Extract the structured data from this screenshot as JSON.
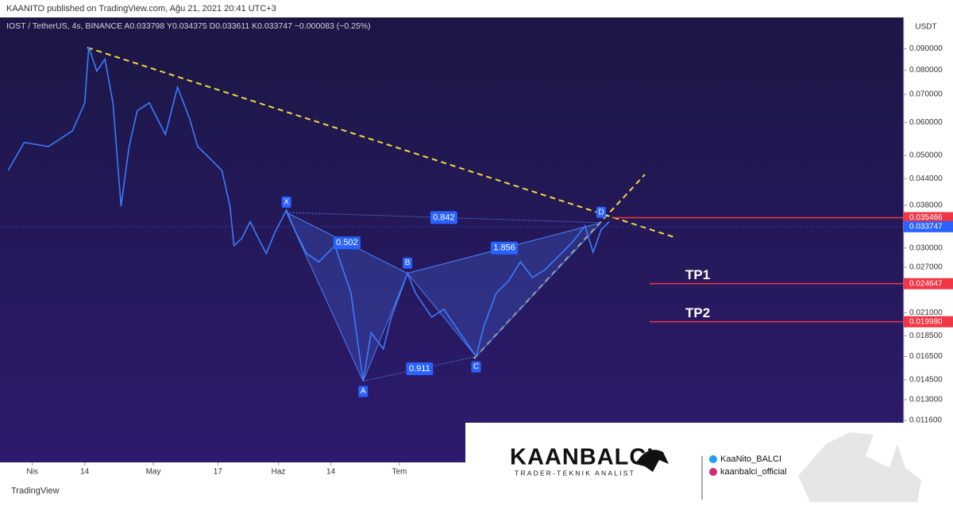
{
  "header": {
    "published": "KAANITO published on TradingView.com, Ağu 21, 2021 20:41 UTC+3"
  },
  "chart_data": {
    "type": "line",
    "legend_text": "IOST / TetherUS, 4s, BINANCE  A0.033798  Y0.034375  D0.033611  K0.033747  −0.000083 (−0.25%)",
    "currency": "USDT",
    "log_scale": true,
    "color": "#3d7bff",
    "xlim": [
      83,
      307
    ],
    "xticks": [
      {
        "value": 91,
        "label": "Nis"
      },
      {
        "value": 104,
        "label": "14"
      },
      {
        "value": 121,
        "label": "May"
      },
      {
        "value": 137,
        "label": "17"
      },
      {
        "value": 152,
        "label": "Haz"
      },
      {
        "value": 165,
        "label": "14"
      },
      {
        "value": 182,
        "label": "Tem"
      }
    ],
    "ylim": [
      0.0092,
      0.107
    ],
    "yticks": [
      {
        "value": 0.09,
        "label": "0.090000"
      },
      {
        "value": 0.08,
        "label": "0.080000"
      },
      {
        "value": 0.07,
        "label": "0.070000"
      },
      {
        "value": 0.06,
        "label": "0.060000"
      },
      {
        "value": 0.05,
        "label": "0.050000"
      },
      {
        "value": 0.044,
        "label": "0.044000"
      },
      {
        "value": 0.038,
        "label": "0.038000"
      },
      {
        "value": 0.03,
        "label": "0.030000"
      },
      {
        "value": 0.027,
        "label": "0.027000"
      },
      {
        "value": 0.021,
        "label": "0.021000"
      },
      {
        "value": 0.0185,
        "label": "0.018500"
      },
      {
        "value": 0.0165,
        "label": "0.016500"
      },
      {
        "value": 0.0145,
        "label": "0.014500"
      },
      {
        "value": 0.013,
        "label": "0.013000"
      },
      {
        "value": 0.0116,
        "label": "0.011600"
      }
    ],
    "x": [
      85,
      89,
      95,
      101,
      104,
      105,
      107,
      109,
      111,
      113,
      115,
      117,
      120,
      124,
      127,
      130,
      132,
      135,
      138,
      140,
      141,
      143,
      145,
      147,
      149,
      151,
      154,
      156,
      159,
      162,
      166,
      170,
      173,
      175,
      178,
      180,
      184,
      186,
      190,
      193,
      197,
      201,
      203,
      206,
      209,
      212,
      215,
      218,
      221,
      225,
      228,
      230,
      232,
      234
    ],
    "values": [
      0.046,
      0.0537,
      0.0525,
      0.0573,
      0.0668,
      0.0908,
      0.0796,
      0.085,
      0.0668,
      0.0378,
      0.0525,
      0.0639,
      0.0668,
      0.0561,
      0.0729,
      0.0612,
      0.0525,
      0.0492,
      0.046,
      0.0378,
      0.0304,
      0.0317,
      0.0347,
      0.0317,
      0.0291,
      0.0325,
      0.037,
      0.0332,
      0.0291,
      0.0278,
      0.0304,
      0.0234,
      0.0144,
      0.0188,
      0.0172,
      0.0205,
      0.0261,
      0.0234,
      0.0205,
      0.0214,
      0.0188,
      0.0165,
      0.0196,
      0.0234,
      0.025,
      0.0278,
      0.0255,
      0.0266,
      0.0284,
      0.0311,
      0.0339,
      0.0293,
      0.0332,
      0.0347
    ],
    "price_lines": [
      {
        "value": 0.035466,
        "label": "0.035466",
        "color": "#f23645"
      },
      {
        "value": 0.033747,
        "label": "0.033747",
        "color": "#2962ff"
      },
      {
        "value": 0.024647,
        "label": "0.024647",
        "color": "#f23645",
        "name": "TP1"
      },
      {
        "value": 0.01998,
        "label": "0.019980",
        "color": "#f23645",
        "name": "TP2"
      }
    ],
    "pattern": {
      "points": [
        {
          "label": "X",
          "x": 154,
          "y": 0.0365
        },
        {
          "label": "A",
          "x": 173,
          "y": 0.0144
        },
        {
          "label": "B",
          "x": 184,
          "y": 0.0261
        },
        {
          "label": "C",
          "x": 201,
          "y": 0.0165
        },
        {
          "label": "D",
          "x": 232,
          "y": 0.0345
        }
      ],
      "ratios": [
        0.502,
        0.842,
        1.856,
        0.911
      ]
    }
  },
  "footer": {
    "brand": "TradingView"
  },
  "watermark": {
    "logo": "KAANBALCI",
    "tagline": "TRADER-TEKNIK ANALIST",
    "twitter": "KaaNito_BALCI",
    "instagram": "kaanbalci_official"
  }
}
